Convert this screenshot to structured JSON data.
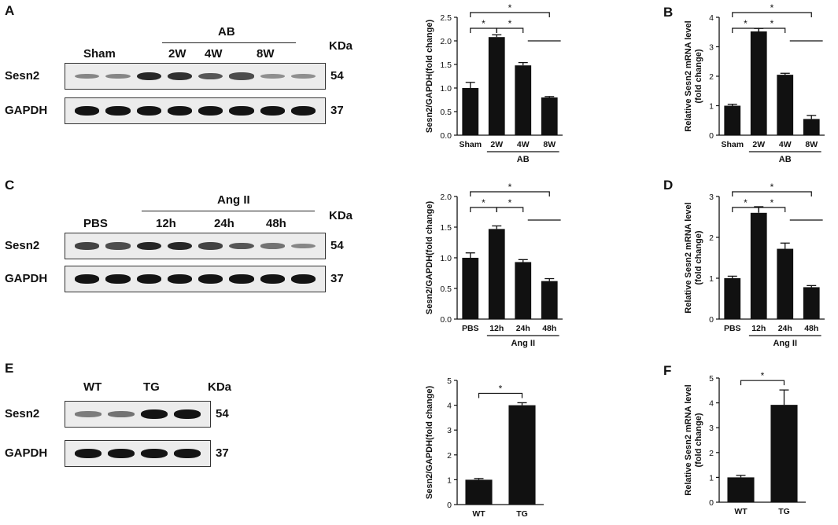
{
  "panels": {
    "A": {
      "letter": "A"
    },
    "B": {
      "letter": "B"
    },
    "C": {
      "letter": "C"
    },
    "D": {
      "letter": "D"
    },
    "E": {
      "letter": "E"
    },
    "F": {
      "letter": "F"
    }
  },
  "blots": [
    {
      "id": "A",
      "group_label": "AB",
      "lane_labels": [
        "Sham",
        "2W",
        "4W",
        "8W"
      ],
      "kda_label": "KDa",
      "rows": [
        {
          "protein": "Sesn2",
          "mw": "54",
          "intensity": [
            0.35,
            0.35,
            0.85,
            0.8,
            0.6,
            0.65,
            0.3,
            0.3
          ]
        },
        {
          "protein": "GAPDH",
          "mw": "37",
          "intensity": [
            0.95,
            0.95,
            0.95,
            0.95,
            0.95,
            0.95,
            0.95,
            0.95
          ]
        }
      ]
    },
    {
      "id": "C",
      "group_label": "Ang II",
      "lane_labels": [
        "PBS",
        "12h",
        "24h",
        "48h"
      ],
      "kda_label": "KDa",
      "rows": [
        {
          "protein": "Sesn2",
          "mw": "54",
          "intensity": [
            0.7,
            0.65,
            0.85,
            0.85,
            0.7,
            0.6,
            0.45,
            0.35
          ]
        },
        {
          "protein": "GAPDH",
          "mw": "37",
          "intensity": [
            0.95,
            0.95,
            0.95,
            0.95,
            0.95,
            0.95,
            0.95,
            0.95
          ]
        }
      ]
    },
    {
      "id": "E",
      "group_label": "",
      "lane_labels": [
        "WT",
        "TG"
      ],
      "kda_label": "KDa",
      "rows": [
        {
          "protein": "Sesn2",
          "mw": "54",
          "intensity": [
            0.4,
            0.45,
            0.95,
            0.95
          ]
        },
        {
          "protein": "GAPDH",
          "mw": "37",
          "intensity": [
            0.95,
            0.95,
            0.95,
            0.95
          ]
        }
      ]
    }
  ],
  "chart_data": [
    {
      "id": "A-chart",
      "type": "bar",
      "categories": [
        "Sham",
        "2W",
        "4W",
        "8W"
      ],
      "values": [
        1.0,
        2.08,
        1.48,
        0.8
      ],
      "errors": [
        0.12,
        0.05,
        0.06,
        0.02
      ],
      "ylabel": "Sesn2/GAPDH(fold change)",
      "ylim": [
        0,
        2.5
      ],
      "yticks": [
        "0.0",
        "0.5",
        "1.0",
        "1.5",
        "2.0",
        "2.5"
      ],
      "group_label": "AB",
      "significance": [
        {
          "from": 0,
          "to": 1,
          "label": "*"
        },
        {
          "from": 1,
          "to": 2,
          "label": "*"
        },
        {
          "from": 0,
          "to": 3,
          "label": "*"
        }
      ]
    },
    {
      "id": "B-chart",
      "type": "bar",
      "categories": [
        "Sham",
        "2W",
        "4W",
        "8W"
      ],
      "values": [
        1.0,
        3.52,
        2.05,
        0.55
      ],
      "errors": [
        0.05,
        0.1,
        0.05,
        0.12
      ],
      "ylabel": "Relative Sesn2 mRNA level\n(fold change)",
      "ylim": [
        0,
        4
      ],
      "yticks": [
        "0",
        "1",
        "2",
        "3",
        "4"
      ],
      "group_label": "AB",
      "significance": [
        {
          "from": 0,
          "to": 1,
          "label": "*"
        },
        {
          "from": 1,
          "to": 2,
          "label": "*"
        },
        {
          "from": 0,
          "to": 3,
          "label": "*"
        }
      ]
    },
    {
      "id": "C-chart",
      "type": "bar",
      "categories": [
        "PBS",
        "12h",
        "24h",
        "48h"
      ],
      "values": [
        1.0,
        1.47,
        0.93,
        0.62
      ],
      "errors": [
        0.08,
        0.05,
        0.04,
        0.04
      ],
      "ylabel": "Sesn2/GAPDH(fold change)",
      "ylim": [
        0,
        2.0
      ],
      "yticks": [
        "0.0",
        "0.5",
        "1.0",
        "1.5",
        "2.0"
      ],
      "group_label": "Ang II",
      "significance": [
        {
          "from": 0,
          "to": 1,
          "label": "*"
        },
        {
          "from": 1,
          "to": 2,
          "label": "*"
        },
        {
          "from": 0,
          "to": 3,
          "label": "*"
        }
      ]
    },
    {
      "id": "D-chart",
      "type": "bar",
      "categories": [
        "PBS",
        "12h",
        "24h",
        "48h"
      ],
      "values": [
        1.0,
        2.6,
        1.72,
        0.78
      ],
      "errors": [
        0.05,
        0.15,
        0.14,
        0.04
      ],
      "ylabel": "Relative Sesn2 mRNA level\n(fold change)",
      "ylim": [
        0,
        3
      ],
      "yticks": [
        "0",
        "1",
        "2",
        "3"
      ],
      "group_label": "Ang II",
      "significance": [
        {
          "from": 0,
          "to": 1,
          "label": "*"
        },
        {
          "from": 1,
          "to": 2,
          "label": "*"
        },
        {
          "from": 0,
          "to": 3,
          "label": "*"
        }
      ]
    },
    {
      "id": "E-chart",
      "type": "bar",
      "categories": [
        "WT",
        "TG"
      ],
      "values": [
        1.0,
        4.0
      ],
      "errors": [
        0.05,
        0.1
      ],
      "ylabel": "Sesn2/GAPDH(fold change)",
      "ylim": [
        0,
        5
      ],
      "yticks": [
        "0",
        "1",
        "2",
        "3",
        "4",
        "5"
      ],
      "group_label": "",
      "significance": [
        {
          "from": 0,
          "to": 1,
          "label": "*"
        }
      ]
    },
    {
      "id": "F-chart",
      "type": "bar",
      "categories": [
        "WT",
        "TG"
      ],
      "values": [
        1.0,
        3.92
      ],
      "errors": [
        0.08,
        0.6
      ],
      "ylabel": "Relative Sesn2 mRNA level\n(fold change)",
      "ylim": [
        0,
        5
      ],
      "yticks": [
        "0",
        "1",
        "2",
        "3",
        "4",
        "5"
      ],
      "group_label": "",
      "significance": [
        {
          "from": 0,
          "to": 1,
          "label": "*"
        }
      ]
    }
  ]
}
